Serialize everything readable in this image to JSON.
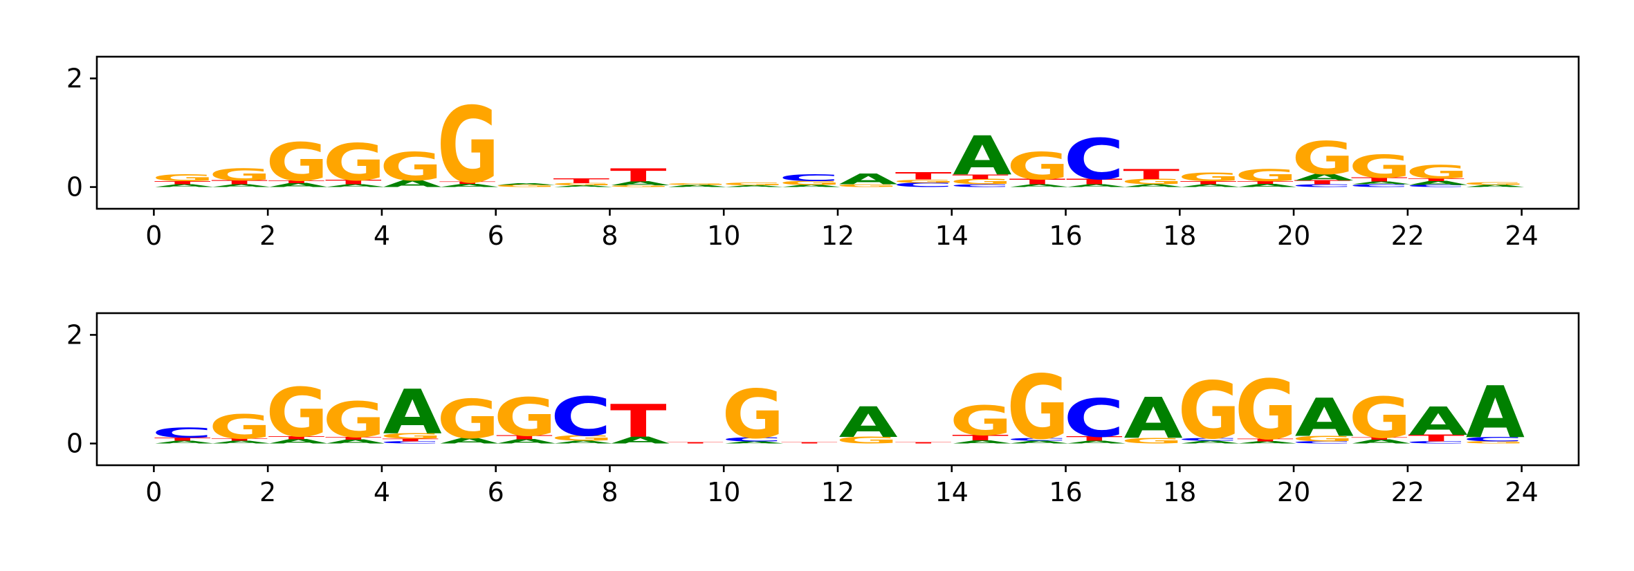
{
  "colors": {
    "A": "#008000",
    "C": "#0000ff",
    "G": "#ffa500",
    "T": "#ff0000"
  },
  "chart_data": [
    {
      "type": "sequence-logo",
      "title": "",
      "xlabel": "",
      "ylabel": "",
      "xlim": [
        -1,
        25
      ],
      "ylim": [
        -0.4,
        2.4
      ],
      "xticks": [
        "0",
        "2",
        "4",
        "6",
        "8",
        "10",
        "12",
        "14",
        "16",
        "18",
        "20",
        "22",
        "24"
      ],
      "yticks": [
        "0",
        "2"
      ],
      "positions": [
        {
          "x": 0,
          "stack": [
            [
              "A",
              0.05
            ],
            [
              "T",
              0.06
            ],
            [
              "G",
              0.12
            ]
          ]
        },
        {
          "x": 1,
          "stack": [
            [
              "A",
              0.05
            ],
            [
              "T",
              0.07
            ],
            [
              "G",
              0.22
            ]
          ]
        },
        {
          "x": 2,
          "stack": [
            [
              "A",
              0.07
            ],
            [
              "T",
              0.05
            ],
            [
              "G",
              0.7
            ]
          ]
        },
        {
          "x": 3,
          "stack": [
            [
              "A",
              0.05
            ],
            [
              "T",
              0.08
            ],
            [
              "G",
              0.68
            ]
          ]
        },
        {
          "x": 4,
          "stack": [
            [
              "A",
              0.13
            ],
            [
              "G",
              0.52
            ]
          ]
        },
        {
          "x": 5,
          "stack": [
            [
              "A",
              0.06
            ],
            [
              "T",
              0.04
            ],
            [
              "G",
              1.4
            ]
          ]
        },
        {
          "x": 6,
          "stack": [
            [
              "G",
              0.04
            ],
            [
              "A",
              0.03
            ]
          ]
        },
        {
          "x": 7,
          "stack": [
            [
              "A",
              0.03
            ],
            [
              "G",
              0.04
            ],
            [
              "T",
              0.09
            ]
          ]
        },
        {
          "x": 8,
          "stack": [
            [
              "G",
              0.03
            ],
            [
              "A",
              0.07
            ],
            [
              "T",
              0.24
            ]
          ]
        },
        {
          "x": 9,
          "stack": [
            [
              "A",
              0.04
            ],
            [
              "G",
              0.03
            ]
          ]
        },
        {
          "x": 10,
          "stack": [
            [
              "A",
              0.03
            ],
            [
              "G",
              0.05
            ]
          ]
        },
        {
          "x": 11,
          "stack": [
            [
              "A",
              0.04
            ],
            [
              "G",
              0.07
            ],
            [
              "C",
              0.12
            ]
          ]
        },
        {
          "x": 12,
          "stack": [
            [
              "G",
              0.05
            ],
            [
              "A",
              0.2
            ]
          ]
        },
        {
          "x": 13,
          "stack": [
            [
              "C",
              0.08
            ],
            [
              "G",
              0.06
            ],
            [
              "T",
              0.13
            ]
          ]
        },
        {
          "x": 14,
          "stack": [
            [
              "C",
              0.05
            ],
            [
              "G",
              0.1
            ],
            [
              "T",
              0.08
            ],
            [
              "A",
              0.72
            ]
          ]
        },
        {
          "x": 15,
          "stack": [
            [
              "A",
              0.05
            ],
            [
              "T",
              0.1
            ],
            [
              "G",
              0.5
            ]
          ]
        },
        {
          "x": 16,
          "stack": [
            [
              "A",
              0.05
            ],
            [
              "T",
              0.1
            ],
            [
              "C",
              0.75
            ]
          ]
        },
        {
          "x": 17,
          "stack": [
            [
              "A",
              0.05
            ],
            [
              "G",
              0.1
            ],
            [
              "T",
              0.18
            ]
          ]
        },
        {
          "x": 18,
          "stack": [
            [
              "A",
              0.05
            ],
            [
              "T",
              0.06
            ],
            [
              "G",
              0.16
            ]
          ]
        },
        {
          "x": 19,
          "stack": [
            [
              "A",
              0.06
            ],
            [
              "T",
              0.05
            ],
            [
              "G",
              0.22
            ]
          ]
        },
        {
          "x": 20,
          "stack": [
            [
              "C",
              0.05
            ],
            [
              "T",
              0.07
            ],
            [
              "A",
              0.12
            ],
            [
              "G",
              0.6
            ]
          ]
        },
        {
          "x": 21,
          "stack": [
            [
              "C",
              0.05
            ],
            [
              "A",
              0.05
            ],
            [
              "T",
              0.07
            ],
            [
              "G",
              0.42
            ]
          ]
        },
        {
          "x": 22,
          "stack": [
            [
              "C",
              0.04
            ],
            [
              "A",
              0.07
            ],
            [
              "T",
              0.05
            ],
            [
              "G",
              0.25
            ]
          ]
        },
        {
          "x": 23,
          "stack": [
            [
              "A",
              0.04
            ],
            [
              "G",
              0.05
            ]
          ]
        }
      ]
    },
    {
      "type": "sequence-logo",
      "title": "",
      "xlabel": "",
      "ylabel": "",
      "xlim": [
        -1,
        25
      ],
      "ylim": [
        -0.4,
        2.4
      ],
      "xticks": [
        "0",
        "2",
        "4",
        "6",
        "8",
        "10",
        "12",
        "14",
        "16",
        "18",
        "20",
        "22",
        "24"
      ],
      "yticks": [
        "0",
        "2"
      ],
      "positions": [
        {
          "x": 0,
          "stack": [
            [
              "A",
              0.05
            ],
            [
              "T",
              0.06
            ],
            [
              "C",
              0.18
            ]
          ]
        },
        {
          "x": 1,
          "stack": [
            [
              "A",
              0.05
            ],
            [
              "T",
              0.04
            ],
            [
              "G",
              0.45
            ]
          ]
        },
        {
          "x": 2,
          "stack": [
            [
              "A",
              0.08
            ],
            [
              "T",
              0.06
            ],
            [
              "G",
              0.9
            ]
          ]
        },
        {
          "x": 3,
          "stack": [
            [
              "A",
              0.07
            ],
            [
              "T",
              0.05
            ],
            [
              "G",
              0.65
            ]
          ]
        },
        {
          "x": 4,
          "stack": [
            [
              "C",
              0.04
            ],
            [
              "T",
              0.05
            ],
            [
              "G",
              0.1
            ],
            [
              "A",
              0.82
            ]
          ]
        },
        {
          "x": 5,
          "stack": [
            [
              "A",
              0.1
            ],
            [
              "G",
              0.72
            ]
          ]
        },
        {
          "x": 6,
          "stack": [
            [
              "A",
              0.08
            ],
            [
              "T",
              0.07
            ],
            [
              "G",
              0.7
            ]
          ]
        },
        {
          "x": 7,
          "stack": [
            [
              "A",
              0.05
            ],
            [
              "G",
              0.1
            ],
            [
              "C",
              0.72
            ]
          ]
        },
        {
          "x": 8,
          "stack": [
            [
              "A",
              0.12
            ],
            [
              "T",
              0.6
            ]
          ]
        },
        {
          "x": 9,
          "stack": [
            [
              "T",
              0.02
            ]
          ]
        },
        {
          "x": 10,
          "stack": [
            [
              "A",
              0.04
            ],
            [
              "C",
              0.07
            ],
            [
              "G",
              0.9
            ]
          ]
        },
        {
          "x": 11,
          "stack": [
            [
              "T",
              0.02
            ]
          ]
        },
        {
          "x": 12,
          "stack": [
            [
              "G",
              0.12
            ],
            [
              "A",
              0.56
            ]
          ]
        },
        {
          "x": 13,
          "stack": [
            [
              "T",
              0.02
            ]
          ]
        },
        {
          "x": 14,
          "stack": [
            [
              "A",
              0.06
            ],
            [
              "T",
              0.1
            ],
            [
              "G",
              0.55
            ]
          ]
        },
        {
          "x": 15,
          "stack": [
            [
              "A",
              0.05
            ],
            [
              "C",
              0.05
            ],
            [
              "G",
              1.18
            ]
          ]
        },
        {
          "x": 16,
          "stack": [
            [
              "A",
              0.05
            ],
            [
              "T",
              0.08
            ],
            [
              "C",
              0.7
            ]
          ]
        },
        {
          "x": 17,
          "stack": [
            [
              "G",
              0.1
            ],
            [
              "A",
              0.75
            ]
          ]
        },
        {
          "x": 18,
          "stack": [
            [
              "A",
              0.05
            ],
            [
              "C",
              0.05
            ],
            [
              "G",
              1.05
            ]
          ]
        },
        {
          "x": 19,
          "stack": [
            [
              "A",
              0.04
            ],
            [
              "T",
              0.05
            ],
            [
              "G",
              1.1
            ]
          ]
        },
        {
          "x": 20,
          "stack": [
            [
              "C",
              0.04
            ],
            [
              "G",
              0.1
            ],
            [
              "A",
              0.7
            ]
          ]
        },
        {
          "x": 21,
          "stack": [
            [
              "A",
              0.07
            ],
            [
              "T",
              0.04
            ],
            [
              "G",
              0.75
            ]
          ]
        },
        {
          "x": 22,
          "stack": [
            [
              "C",
              0.04
            ],
            [
              "T",
              0.12
            ],
            [
              "A",
              0.52
            ]
          ]
        },
        {
          "x": 23,
          "stack": [
            [
              "G",
              0.04
            ],
            [
              "C",
              0.08
            ],
            [
              "A",
              0.95
            ]
          ]
        }
      ]
    }
  ]
}
